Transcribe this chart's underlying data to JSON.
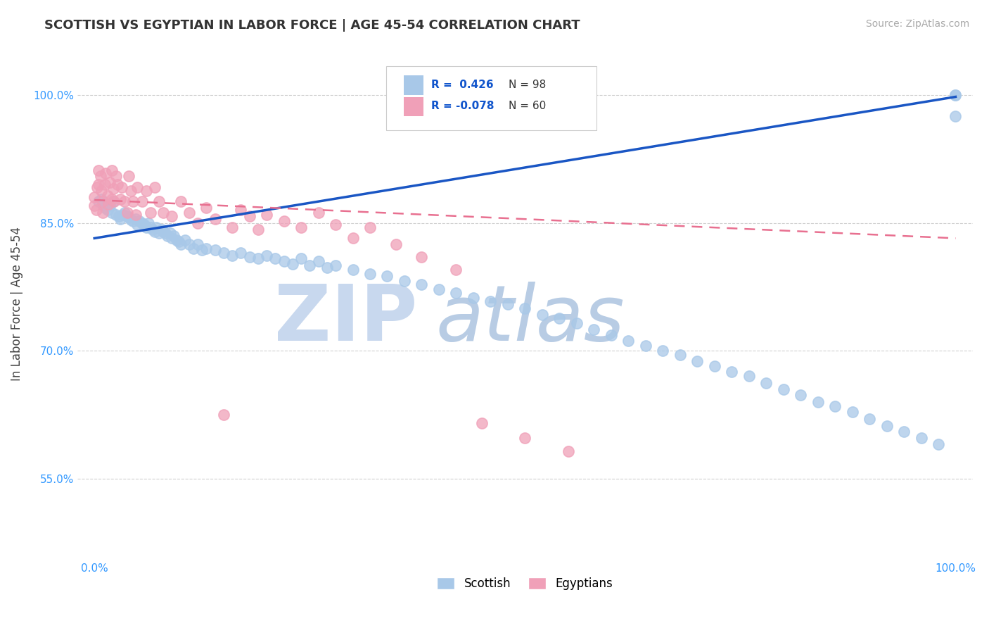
{
  "title": "SCOTTISH VS EGYPTIAN IN LABOR FORCE | AGE 45-54 CORRELATION CHART",
  "source": "Source: ZipAtlas.com",
  "xlabel": "",
  "ylabel": "In Labor Force | Age 45-54",
  "xlim": [
    -0.02,
    1.02
  ],
  "ylim": [
    0.455,
    1.055
  ],
  "yticks": [
    0.55,
    0.7,
    0.85,
    1.0
  ],
  "ytick_labels": [
    "55.0%",
    "70.0%",
    "85.0%",
    "100.0%"
  ],
  "xtick_labels": [
    "0.0%",
    "100.0%"
  ],
  "scottish_R": 0.426,
  "scottish_N": 98,
  "egyptian_R": -0.078,
  "egyptian_N": 60,
  "scottish_color": "#a8c8e8",
  "egyptian_color": "#f0a0b8",
  "scottish_trend_color": "#1a56c4",
  "egyptian_trend_color": "#e87090",
  "background_color": "#ffffff",
  "watermark_zip_color": "#c8d8ee",
  "watermark_atlas_color": "#b8cce4",
  "legend_scottish": "Scottish",
  "legend_egyptian": "Egyptians",
  "scottish_x": [
    0.005,
    0.008,
    0.01,
    0.012,
    0.015,
    0.018,
    0.02,
    0.022,
    0.025,
    0.028,
    0.03,
    0.033,
    0.035,
    0.038,
    0.04,
    0.042,
    0.045,
    0.048,
    0.05,
    0.052,
    0.055,
    0.058,
    0.06,
    0.063,
    0.065,
    0.068,
    0.07,
    0.072,
    0.075,
    0.078,
    0.08,
    0.082,
    0.085,
    0.088,
    0.09,
    0.092,
    0.095,
    0.098,
    0.1,
    0.105,
    0.11,
    0.115,
    0.12,
    0.125,
    0.13,
    0.14,
    0.15,
    0.16,
    0.17,
    0.18,
    0.19,
    0.2,
    0.21,
    0.22,
    0.23,
    0.24,
    0.25,
    0.26,
    0.27,
    0.28,
    0.3,
    0.32,
    0.34,
    0.36,
    0.38,
    0.4,
    0.42,
    0.44,
    0.46,
    0.48,
    0.5,
    0.52,
    0.54,
    0.56,
    0.58,
    0.6,
    0.62,
    0.64,
    0.66,
    0.68,
    0.7,
    0.72,
    0.74,
    0.76,
    0.78,
    0.8,
    0.82,
    0.84,
    0.86,
    0.88,
    0.9,
    0.92,
    0.94,
    0.96,
    0.98,
    1.0,
    1.0,
    1.0
  ],
  "scottish_y": [
    0.875,
    0.878,
    0.872,
    0.868,
    0.865,
    0.87,
    0.862,
    0.875,
    0.86,
    0.858,
    0.855,
    0.86,
    0.862,
    0.858,
    0.856,
    0.854,
    0.852,
    0.855,
    0.848,
    0.852,
    0.85,
    0.848,
    0.845,
    0.85,
    0.845,
    0.842,
    0.84,
    0.845,
    0.838,
    0.842,
    0.84,
    0.838,
    0.835,
    0.838,
    0.832,
    0.835,
    0.83,
    0.828,
    0.825,
    0.83,
    0.825,
    0.82,
    0.825,
    0.818,
    0.82,
    0.818,
    0.815,
    0.812,
    0.815,
    0.81,
    0.808,
    0.812,
    0.808,
    0.805,
    0.802,
    0.808,
    0.8,
    0.805,
    0.798,
    0.8,
    0.795,
    0.79,
    0.788,
    0.782,
    0.778,
    0.772,
    0.768,
    0.762,
    0.758,
    0.755,
    0.75,
    0.742,
    0.738,
    0.732,
    0.725,
    0.718,
    0.712,
    0.706,
    0.7,
    0.695,
    0.688,
    0.682,
    0.675,
    0.67,
    0.662,
    0.655,
    0.648,
    0.64,
    0.635,
    0.628,
    0.62,
    0.612,
    0.605,
    0.598,
    0.59,
    1.0,
    1.0,
    0.975
  ],
  "egyptian_x": [
    0.0,
    0.0,
    0.002,
    0.003,
    0.005,
    0.005,
    0.007,
    0.008,
    0.01,
    0.01,
    0.012,
    0.013,
    0.015,
    0.016,
    0.018,
    0.02,
    0.02,
    0.022,
    0.023,
    0.025,
    0.027,
    0.03,
    0.032,
    0.035,
    0.038,
    0.04,
    0.042,
    0.045,
    0.048,
    0.05,
    0.055,
    0.06,
    0.065,
    0.07,
    0.075,
    0.08,
    0.09,
    0.1,
    0.11,
    0.12,
    0.13,
    0.14,
    0.15,
    0.16,
    0.17,
    0.18,
    0.19,
    0.2,
    0.22,
    0.24,
    0.26,
    0.28,
    0.3,
    0.32,
    0.35,
    0.38,
    0.42,
    0.45,
    0.5,
    0.55
  ],
  "egyptian_y": [
    0.88,
    0.87,
    0.865,
    0.892,
    0.912,
    0.895,
    0.905,
    0.888,
    0.875,
    0.862,
    0.895,
    0.908,
    0.882,
    0.872,
    0.898,
    0.912,
    0.878,
    0.89,
    0.875,
    0.905,
    0.895,
    0.878,
    0.892,
    0.875,
    0.862,
    0.905,
    0.888,
    0.875,
    0.86,
    0.892,
    0.875,
    0.888,
    0.862,
    0.892,
    0.875,
    0.862,
    0.858,
    0.875,
    0.862,
    0.85,
    0.868,
    0.855,
    0.625,
    0.845,
    0.865,
    0.858,
    0.842,
    0.86,
    0.852,
    0.845,
    0.862,
    0.848,
    0.832,
    0.845,
    0.825,
    0.81,
    0.795,
    0.615,
    0.598,
    0.582
  ],
  "scottish_trend_x": [
    0.0,
    1.0
  ],
  "scottish_trend_y": [
    0.832,
    0.998
  ],
  "egyptian_trend_x": [
    0.0,
    1.0
  ],
  "egyptian_trend_y": [
    0.877,
    0.832
  ]
}
